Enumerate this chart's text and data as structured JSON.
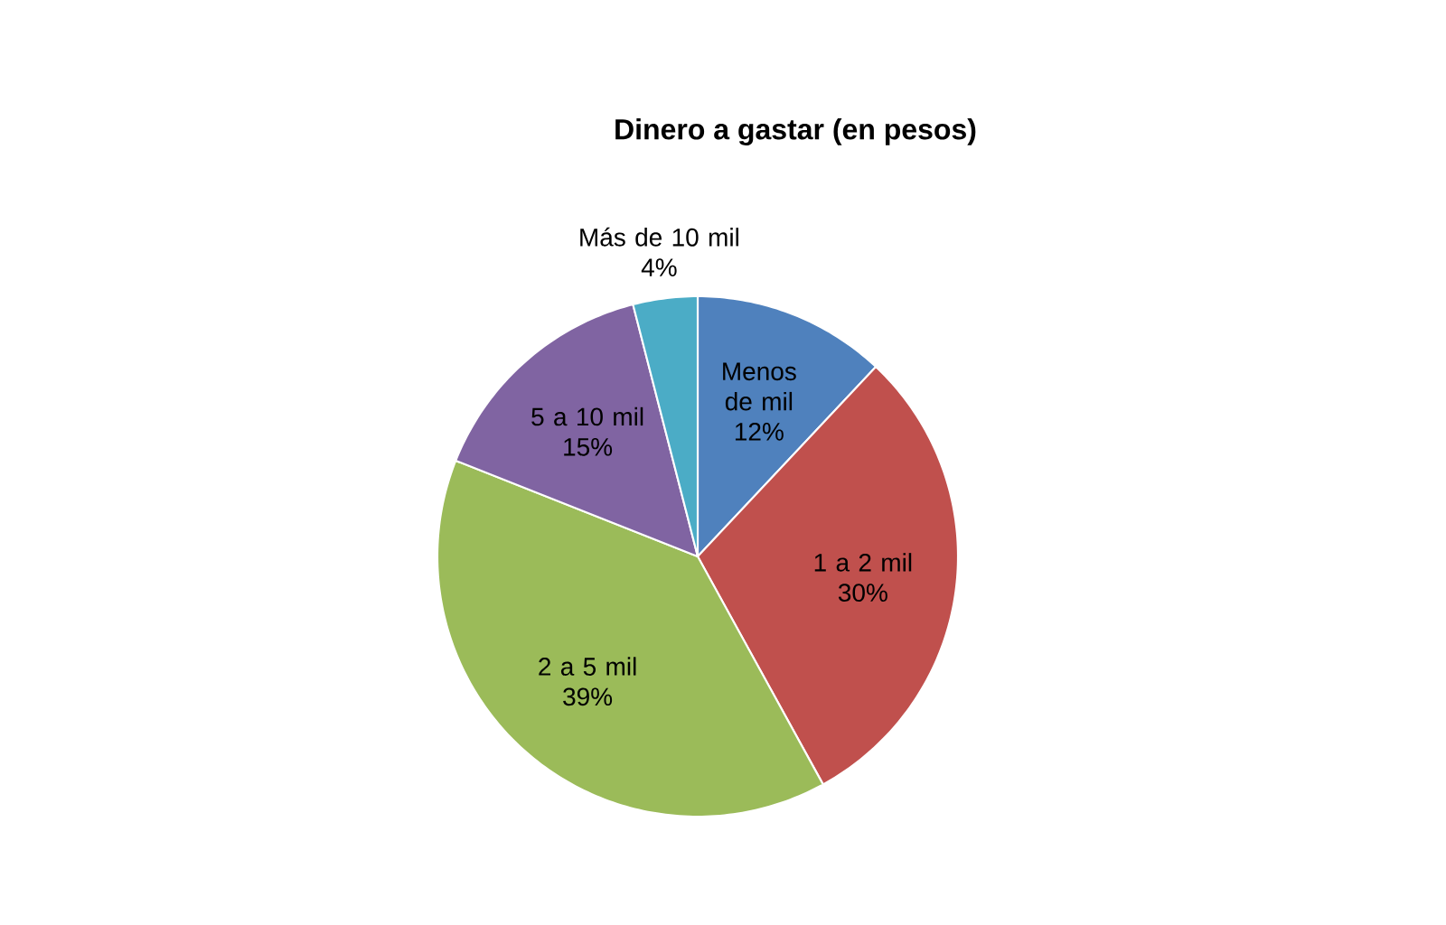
{
  "chart_data": {
    "type": "pie",
    "title": "Dinero a gastar (en pesos)",
    "categories": [
      "Menos de mil",
      "1 a 2 mil",
      "2 a 5 mil",
      "5 a 10 mil",
      "Más de 10 mil"
    ],
    "values": [
      12,
      30,
      39,
      15,
      4
    ],
    "value_labels": [
      "12%",
      "30%",
      "39%",
      "15%",
      "4%"
    ],
    "colors": [
      "#4f81bd",
      "#c0504d",
      "#9bbb59",
      "#8064a2",
      "#4bacc6"
    ],
    "legend": false
  }
}
